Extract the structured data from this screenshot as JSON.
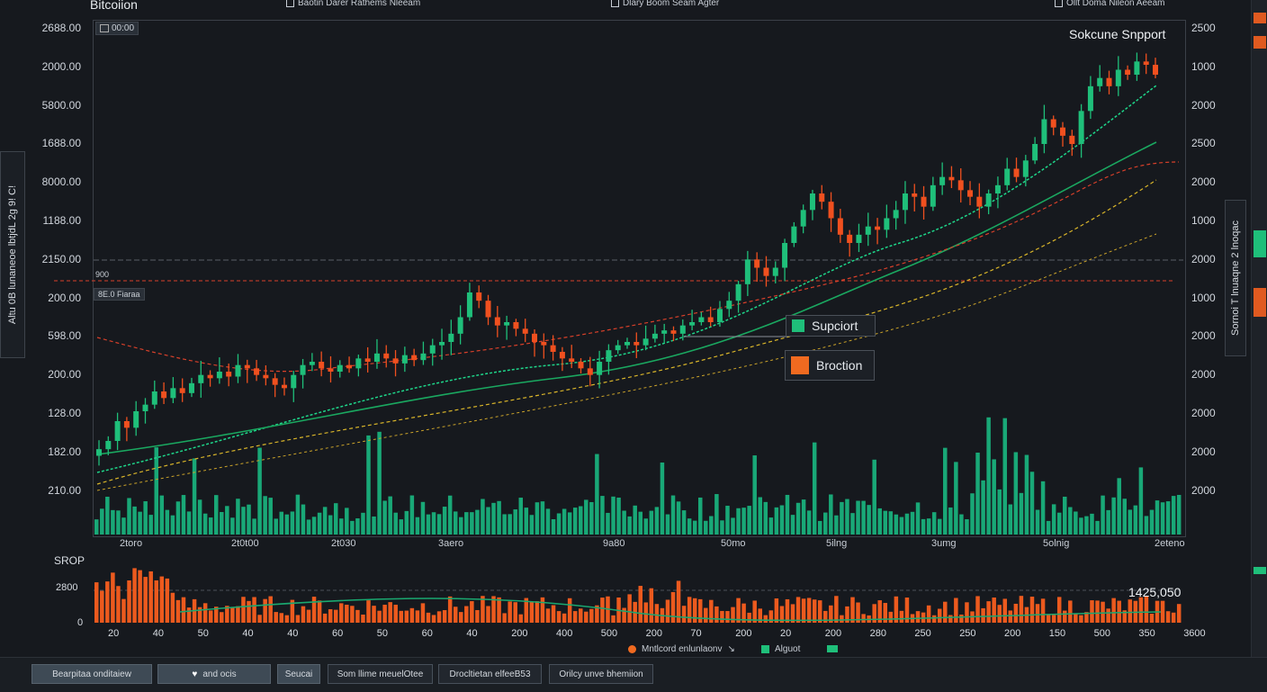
{
  "app": {
    "title": "Bitcoiion"
  },
  "top_items": [
    {
      "label": "Baotin Darer Rathems Nleeam",
      "left": 318
    },
    {
      "label": "Dlary Boom Seam Agter",
      "left": 679
    },
    {
      "label": "Ollt Doma Nileon Aeeam",
      "left": 1172
    }
  ],
  "y_left": [
    "2688.00",
    "2000.00",
    "5800.00",
    "1688.00",
    "8000.00",
    "1188.00",
    "2150.00",
    "200.00",
    "598.00",
    "200.00",
    "128.00",
    "182.00",
    "210.00"
  ],
  "y_right": [
    "2500",
    "1000",
    "2000",
    "2500",
    "2000",
    "1000",
    "2000",
    "1000",
    "2000",
    "2000",
    "2000",
    "2000",
    "2000"
  ],
  "x_labels": [
    "2toro",
    "2t0t00",
    "2t030",
    "3aero",
    "9a80",
    "50mo",
    "5ilng",
    "3umg",
    "5olnig",
    "2eteno"
  ],
  "tags": {
    "top_left": "00:00",
    "price_a": "900",
    "price_b": "8E.0 Fiaraa"
  },
  "overlay_title": "Sokcune Snpport",
  "legend": {
    "support": "Supciort",
    "broction": "Broction"
  },
  "side_left": "Altu 0B lunaneoe lbtjdL 2g 9! C!",
  "side_right": "Sornoi T lnuaqne 2 lnoqac",
  "sub": {
    "label": "SROP",
    "level": "2800",
    "value": "1425,050",
    "zero": "0"
  },
  "sub_x": [
    "20",
    "40",
    "50",
    "40",
    "40",
    "60",
    "50",
    "60",
    "40",
    "200",
    "400",
    "500",
    "200",
    "70",
    "200",
    "20",
    "200",
    "280",
    "250",
    "250",
    "200",
    "150",
    "500",
    "350",
    "3600"
  ],
  "legend2": {
    "a": "Mntlcord enlunlaonv",
    "b": "Alguot"
  },
  "buttons": [
    "Bearpitaa onditaiew",
    "and ocis",
    "Seucai",
    "Som llime meuelOtee",
    "Drocltietan elfeeB53",
    "Orilcy unve bhemiion"
  ],
  "colors": {
    "up": "#1fbf7a",
    "down": "#f0501f",
    "ma_fast": "#1ed68a",
    "ma_slow": "#1aa860",
    "ma_yellow": "#d9b52a",
    "resistance": "#d8402a"
  },
  "chart_data": {
    "type": "candlestick",
    "title": "Sokcune Snpport",
    "close": [
      2250,
      2300,
      2420,
      2380,
      2480,
      2520,
      2600,
      2560,
      2620,
      2590,
      2650,
      2700,
      2680,
      2720,
      2690,
      2760,
      2740,
      2700,
      2680,
      2640,
      2620,
      2700,
      2760,
      2780,
      2740,
      2720,
      2760,
      2740,
      2800,
      2780,
      2830,
      2800,
      2770,
      2820,
      2790,
      2830,
      2880,
      2900,
      2950,
      3050,
      3200,
      3150,
      3050,
      3000,
      3020,
      2980,
      2950,
      2900,
      2880,
      2840,
      2800,
      2780,
      2740,
      2700,
      2780,
      2850,
      2880,
      2900,
      2880,
      2920,
      2950,
      2970,
      2950,
      3000,
      3020,
      3050,
      3020,
      3100,
      3150,
      3250,
      3400,
      3350,
      3300,
      3350,
      3500,
      3600,
      3700,
      3800,
      3750,
      3650,
      3550,
      3500,
      3550,
      3600,
      3580,
      3650,
      3700,
      3800,
      3780,
      3720,
      3850,
      3900,
      3880,
      3820,
      3780,
      3720,
      3800,
      3850,
      3950,
      3900,
      4000,
      4100,
      4250,
      4200,
      4150,
      4100,
      4300,
      4450,
      4500,
      4450,
      4550,
      4520,
      4600,
      4580,
      4520
    ]
  }
}
